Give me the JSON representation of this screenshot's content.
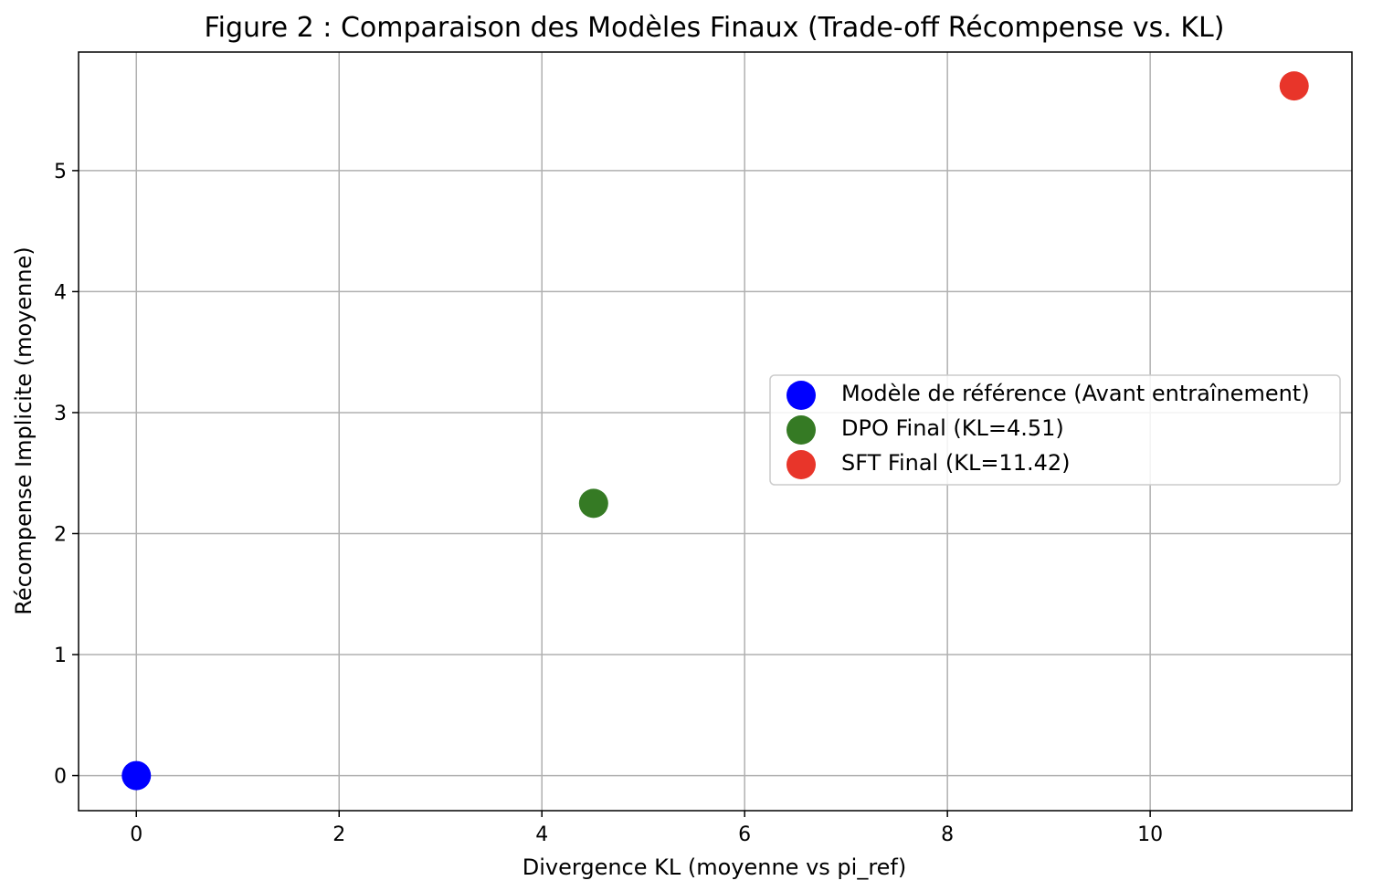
{
  "chart_data": {
    "type": "scatter",
    "title": "Figure 2 : Comparaison des Modèles Finaux (Trade-off Récompense vs. KL)",
    "xlabel": "Divergence KL (moyenne vs pi_ref)",
    "ylabel": "Récompense Implicite (moyenne)",
    "xlim": [
      -0.57,
      11.99
    ],
    "ylim": [
      -0.29,
      5.98
    ],
    "xticks": [
      0,
      2,
      4,
      6,
      8,
      10
    ],
    "yticks": [
      0,
      1,
      2,
      3,
      4,
      5
    ],
    "grid": true,
    "legend_position": "center-right",
    "series": [
      {
        "name": "Modèle de référence (Avant entraînement)",
        "color": "#0000ff",
        "points": [
          {
            "x": 0,
            "y": 0
          }
        ]
      },
      {
        "name": "DPO Final (KL=4.51)",
        "color": "#357a24",
        "points": [
          {
            "x": 4.51,
            "y": 2.25
          }
        ]
      },
      {
        "name": "SFT Final (KL=11.42)",
        "color": "#e8352a",
        "points": [
          {
            "x": 11.42,
            "y": 5.7
          }
        ]
      }
    ]
  }
}
